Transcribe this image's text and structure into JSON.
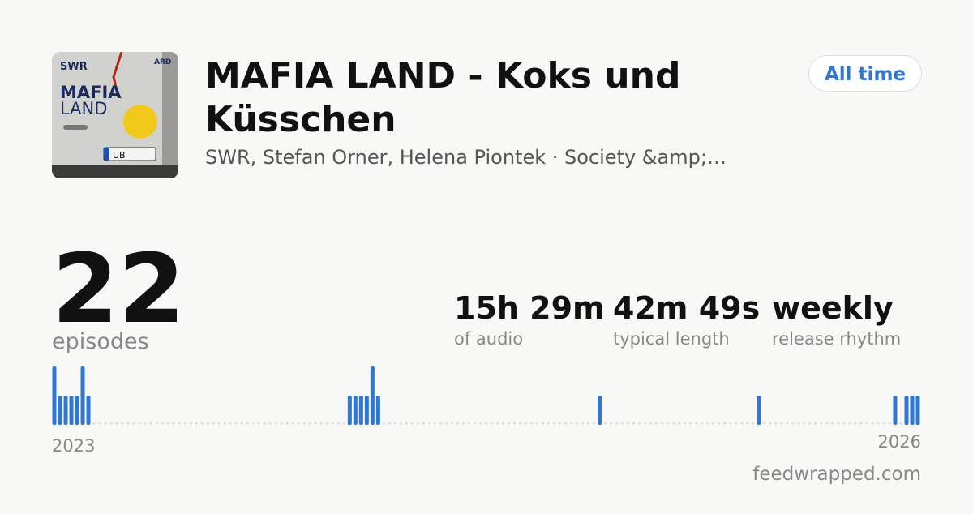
{
  "cover": {
    "brand": "SWR",
    "network": "ARD",
    "show_line1": "MAFIA",
    "show_line2": "LAND",
    "plate": "UB"
  },
  "header": {
    "title": "MAFIA LAND - Koks und Küsschen",
    "subtitle": "SWR, Stefan Orner, Helena Piontek · Society &amp;…",
    "range_button": "All time"
  },
  "stats": {
    "episodes": {
      "value": "22",
      "label": "episodes"
    },
    "items": [
      {
        "value": "15h 29m",
        "label": "of audio"
      },
      {
        "value": "42m 49s",
        "label": "typical length"
      },
      {
        "value": "weekly",
        "label": "release rhythm"
      }
    ]
  },
  "timeline": {
    "start_label": "2023",
    "end_label": "2026",
    "color": "#2f77d0",
    "values": [
      2,
      1,
      1,
      1,
      1,
      2,
      1,
      0,
      0,
      0,
      0,
      0,
      0,
      0,
      0,
      0,
      0,
      0,
      0,
      0,
      0,
      0,
      0,
      0,
      0,
      0,
      0,
      0,
      0,
      0,
      0,
      0,
      0,
      0,
      0,
      0,
      0,
      0,
      0,
      0,
      0,
      0,
      0,
      0,
      0,
      0,
      0,
      0,
      0,
      0,
      0,
      0,
      1,
      1,
      1,
      1,
      2,
      1,
      0,
      0,
      0,
      0,
      0,
      0,
      0,
      0,
      0,
      0,
      0,
      0,
      0,
      0,
      0,
      0,
      0,
      0,
      0,
      0,
      0,
      0,
      0,
      0,
      0,
      0,
      0,
      0,
      0,
      0,
      0,
      0,
      0,
      0,
      0,
      0,
      0,
      0,
      1,
      0,
      0,
      0,
      0,
      0,
      0,
      0,
      0,
      0,
      0,
      0,
      0,
      0,
      0,
      0,
      0,
      0,
      0,
      0,
      0,
      0,
      0,
      0,
      0,
      0,
      0,
      0,
      1,
      0,
      0,
      0,
      0,
      0,
      0,
      0,
      0,
      0,
      0,
      0,
      0,
      0,
      0,
      0,
      0,
      0,
      0,
      0,
      0,
      0,
      0,
      0,
      1,
      0,
      1,
      1,
      1
    ]
  },
  "footer": {
    "site": "feedwrapped.com"
  }
}
